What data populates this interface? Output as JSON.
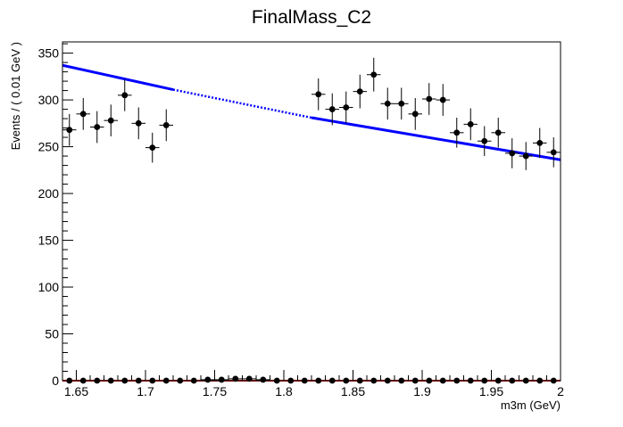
{
  "chart_data": {
    "type": "scatter",
    "title": "FinalMass_C2",
    "xlabel": "m3m (GeV)",
    "ylabel": "Events / ( 0.01 GeV )",
    "xlim": [
      1.64,
      2.0
    ],
    "ylim": [
      0,
      362
    ],
    "x_tick_labels": [
      "1.65",
      "1.7",
      "1.75",
      "1.8",
      "1.85",
      "1.9",
      "1.95",
      "2"
    ],
    "y_tick_labels": [
      "0",
      "50",
      "100",
      "150",
      "200",
      "250",
      "300",
      "350"
    ],
    "grid": false,
    "colors": {
      "data": "#000000",
      "fit_line": "#0000ff",
      "bottom_line": "#cc0000"
    },
    "series": [
      {
        "kind": "points_with_errors",
        "bin_half_width": 0.005,
        "points": [
          {
            "x": 1.645,
            "y": 268,
            "err": 17
          },
          {
            "x": 1.655,
            "y": 285,
            "err": 17
          },
          {
            "x": 1.665,
            "y": 271,
            "err": 17
          },
          {
            "x": 1.675,
            "y": 278,
            "err": 17
          },
          {
            "x": 1.685,
            "y": 305,
            "err": 17
          },
          {
            "x": 1.695,
            "y": 275,
            "err": 17
          },
          {
            "x": 1.705,
            "y": 249,
            "err": 16
          },
          {
            "x": 1.715,
            "y": 273,
            "err": 17
          },
          {
            "x": 1.825,
            "y": 306,
            "err": 17
          },
          {
            "x": 1.835,
            "y": 290,
            "err": 17
          },
          {
            "x": 1.845,
            "y": 292,
            "err": 17
          },
          {
            "x": 1.855,
            "y": 309,
            "err": 18
          },
          {
            "x": 1.865,
            "y": 327,
            "err": 18
          },
          {
            "x": 1.875,
            "y": 296,
            "err": 17
          },
          {
            "x": 1.885,
            "y": 296,
            "err": 17
          },
          {
            "x": 1.895,
            "y": 285,
            "err": 17
          },
          {
            "x": 1.905,
            "y": 301,
            "err": 17
          },
          {
            "x": 1.915,
            "y": 300,
            "err": 17
          },
          {
            "x": 1.925,
            "y": 265,
            "err": 16
          },
          {
            "x": 1.935,
            "y": 274,
            "err": 17
          },
          {
            "x": 1.945,
            "y": 256,
            "err": 16
          },
          {
            "x": 1.955,
            "y": 265,
            "err": 16
          },
          {
            "x": 1.965,
            "y": 243,
            "err": 16
          },
          {
            "x": 1.975,
            "y": 240,
            "err": 15
          },
          {
            "x": 1.985,
            "y": 254,
            "err": 16
          },
          {
            "x": 1.995,
            "y": 244,
            "err": 16
          }
        ]
      },
      {
        "kind": "points_with_errors",
        "bin_half_width": 0.005,
        "points": [
          {
            "x": 1.645,
            "y": 0,
            "err": 0
          },
          {
            "x": 1.655,
            "y": 0,
            "err": 0
          },
          {
            "x": 1.665,
            "y": 0,
            "err": 0
          },
          {
            "x": 1.675,
            "y": 0,
            "err": 0
          },
          {
            "x": 1.685,
            "y": 0,
            "err": 0
          },
          {
            "x": 1.695,
            "y": 0,
            "err": 0
          },
          {
            "x": 1.705,
            "y": 0,
            "err": 0
          },
          {
            "x": 1.715,
            "y": 0,
            "err": 0
          },
          {
            "x": 1.725,
            "y": 0,
            "err": 1
          },
          {
            "x": 1.735,
            "y": 0,
            "err": 1
          },
          {
            "x": 1.745,
            "y": 1,
            "err": 1.5
          },
          {
            "x": 1.755,
            "y": 1,
            "err": 1.5
          },
          {
            "x": 1.765,
            "y": 2,
            "err": 2
          },
          {
            "x": 1.775,
            "y": 2,
            "err": 2
          },
          {
            "x": 1.785,
            "y": 1,
            "err": 1.5
          },
          {
            "x": 1.795,
            "y": 0,
            "err": 1
          },
          {
            "x": 1.805,
            "y": 0,
            "err": 1
          },
          {
            "x": 1.815,
            "y": 0,
            "err": 0
          },
          {
            "x": 1.825,
            "y": 0,
            "err": 0
          },
          {
            "x": 1.835,
            "y": 0,
            "err": 0
          },
          {
            "x": 1.845,
            "y": 0,
            "err": 0
          },
          {
            "x": 1.855,
            "y": 0,
            "err": 0
          },
          {
            "x": 1.865,
            "y": 0,
            "err": 0
          },
          {
            "x": 1.875,
            "y": 0,
            "err": 0
          },
          {
            "x": 1.885,
            "y": 0,
            "err": 0
          },
          {
            "x": 1.895,
            "y": 0,
            "err": 0
          },
          {
            "x": 1.905,
            "y": 0,
            "err": 0
          },
          {
            "x": 1.915,
            "y": 0,
            "err": 0
          },
          {
            "x": 1.925,
            "y": 0,
            "err": 0
          },
          {
            "x": 1.935,
            "y": 0,
            "err": 0
          },
          {
            "x": 1.945,
            "y": 0,
            "err": 0
          },
          {
            "x": 1.955,
            "y": 0,
            "err": 0
          },
          {
            "x": 1.965,
            "y": 0,
            "err": 0
          },
          {
            "x": 1.975,
            "y": 0,
            "err": 0
          },
          {
            "x": 1.985,
            "y": 0,
            "err": 0
          },
          {
            "x": 1.995,
            "y": 0,
            "err": 0
          }
        ]
      },
      {
        "kind": "line",
        "style": "solid-dotted-solid",
        "solid_x_ranges": [
          [
            1.64,
            1.72
          ],
          [
            1.82,
            2.0
          ]
        ],
        "dotted_x_ranges": [
          [
            1.72,
            1.82
          ]
        ],
        "points": [
          {
            "x": 1.64,
            "y": 337
          },
          {
            "x": 1.72,
            "y": 311
          },
          {
            "x": 1.82,
            "y": 281
          },
          {
            "x": 2.0,
            "y": 236
          }
        ]
      },
      {
        "kind": "line",
        "style": "solid",
        "points": [
          {
            "x": 1.64,
            "y": 0
          },
          {
            "x": 2.0,
            "y": 0
          }
        ]
      }
    ]
  }
}
